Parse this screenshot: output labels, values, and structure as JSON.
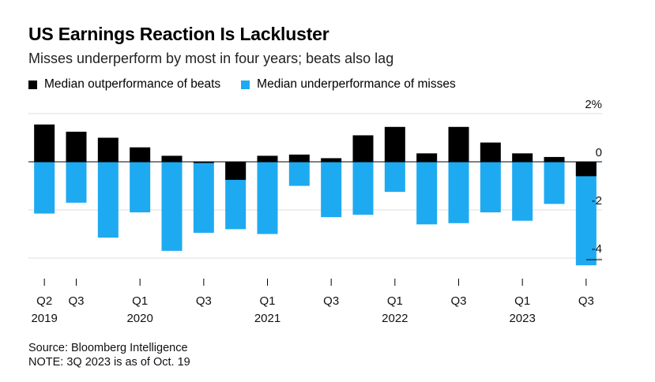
{
  "title": "US Earnings Reaction Is Lackluster",
  "subtitle": "Misses underperform by most in four years; beats also lag",
  "legend": {
    "beats": "Median outperformance of beats",
    "misses": "Median underperformance of misses"
  },
  "colors": {
    "beats": "#000000",
    "misses": "#1eaaf1",
    "axis": "#000000",
    "grid": "#dddddd"
  },
  "chart_data": {
    "type": "bar",
    "categories": [
      "Q2 2019",
      "Q3 2019",
      "Q4 2019",
      "Q1 2020",
      "Q2 2020",
      "Q3 2020",
      "Q4 2020",
      "Q1 2021",
      "Q2 2021",
      "Q3 2021",
      "Q4 2021",
      "Q1 2022",
      "Q2 2022",
      "Q3 2022",
      "Q4 2022",
      "Q1 2023",
      "Q2 2023",
      "Q3 2023"
    ],
    "series": [
      {
        "name": "Median outperformance of beats",
        "values": [
          1.55,
          1.25,
          1.0,
          0.6,
          0.25,
          -0.05,
          -0.75,
          0.25,
          0.3,
          0.15,
          1.1,
          1.45,
          0.35,
          1.45,
          0.8,
          0.35,
          0.2,
          -0.6
        ]
      },
      {
        "name": "Median underperformance of misses",
        "values": [
          -2.15,
          -1.7,
          -3.15,
          -2.1,
          -3.7,
          -2.95,
          -2.8,
          -3.0,
          -1.0,
          -2.3,
          -2.2,
          -1.25,
          -2.6,
          -2.55,
          -2.1,
          -2.45,
          -1.75,
          -4.3
        ]
      }
    ],
    "ylim": [
      -4.5,
      2
    ],
    "yticks": [
      "2%",
      "0",
      "-2",
      "-4"
    ],
    "ytick_values": [
      2,
      0,
      -2,
      -4
    ],
    "xtick_labels": [
      {
        "q": "Q2",
        "year": "2019"
      },
      {
        "q": "Q3",
        "year": ""
      },
      {
        "q": "Q1",
        "year": "2020"
      },
      {
        "q": "Q3",
        "year": ""
      },
      {
        "q": "Q1",
        "year": "2021"
      },
      {
        "q": "Q3",
        "year": ""
      },
      {
        "q": "Q1",
        "year": "2022"
      },
      {
        "q": "Q3",
        "year": ""
      },
      {
        "q": "Q1",
        "year": "2023"
      },
      {
        "q": "Q3",
        "year": ""
      }
    ],
    "xtick_category_index": [
      0,
      1,
      3,
      5,
      7,
      9,
      11,
      13,
      15,
      17
    ],
    "grid": true,
    "legend_position": "top-left"
  },
  "footer": {
    "source": "Source: Bloomberg Intelligence",
    "note": "NOTE: 3Q 2023 is as of Oct. 19"
  }
}
